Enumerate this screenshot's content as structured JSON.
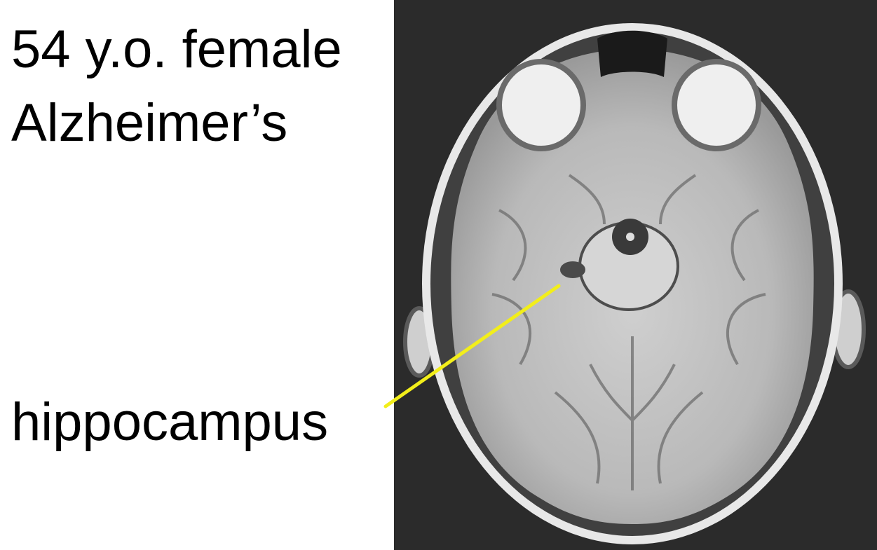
{
  "caption": {
    "line1": "54 y.o. female",
    "line2": "Alzheimer’s"
  },
  "annotation": {
    "label": "hippocampus",
    "color": "#f2ee1a"
  },
  "image": {
    "subject": "axial brain MRI scan",
    "background_color": "#2b2b2b"
  }
}
